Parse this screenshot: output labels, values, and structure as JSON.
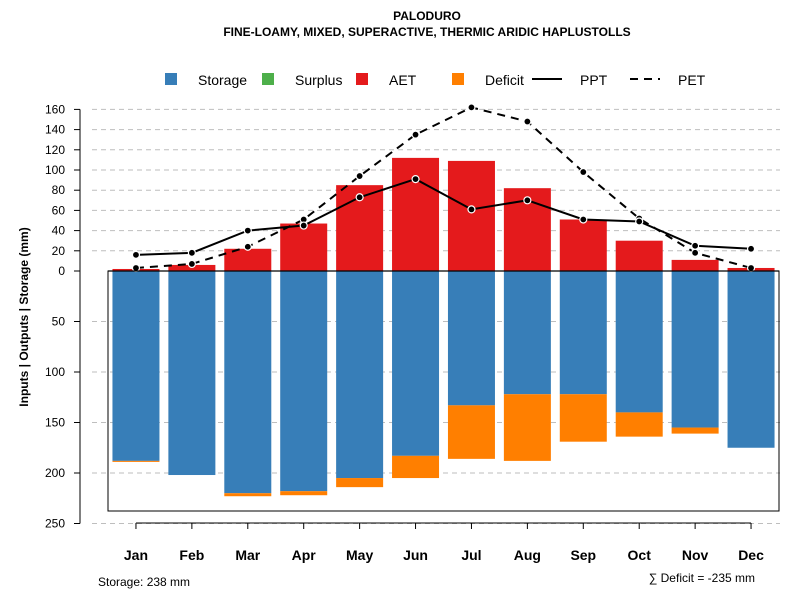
{
  "chart_data": {
    "type": "bar",
    "title": "PALODURO",
    "subtitle": "FINE-LOAMY, MIXED, SUPERACTIVE, THERMIC ARIDIC HAPLUSTOLLS",
    "ylabel": "Inputs | Outputs | Storage    (mm)",
    "categories": [
      "Jan",
      "Feb",
      "Mar",
      "Apr",
      "May",
      "Jun",
      "Jul",
      "Aug",
      "Sep",
      "Oct",
      "Nov",
      "Dec"
    ],
    "upper_axis": {
      "range": [
        0,
        160
      ],
      "ticks": [
        "0",
        "20",
        "40",
        "60",
        "80",
        "100",
        "120",
        "140",
        "160"
      ]
    },
    "lower_axis": {
      "range": [
        0,
        250
      ],
      "ticks": [
        "50",
        "100",
        "150",
        "200",
        "250"
      ]
    },
    "legend": [
      {
        "name": "Storage",
        "kind": "box",
        "color": "#377eb8"
      },
      {
        "name": "Surplus",
        "kind": "box",
        "color": "#4daf4a"
      },
      {
        "name": "AET",
        "kind": "box",
        "color": "#e41a1c"
      },
      {
        "name": "Deficit",
        "kind": "box",
        "color": "#ff7f00"
      },
      {
        "name": "PPT",
        "kind": "line",
        "color": "#000000"
      },
      {
        "name": "PET",
        "kind": "dashed",
        "color": "#000000"
      }
    ],
    "series": [
      {
        "name": "AET",
        "values": [
          2,
          6,
          22,
          47,
          85,
          112,
          109,
          82,
          51,
          30,
          11,
          3
        ]
      },
      {
        "name": "Storage",
        "values": [
          188,
          202,
          220,
          218,
          205,
          183,
          133,
          122,
          122,
          140,
          155,
          175
        ]
      },
      {
        "name": "Deficit",
        "values": [
          1,
          0,
          3,
          4,
          9,
          22,
          53,
          66,
          47,
          24,
          6,
          0
        ]
      },
      {
        "name": "PPT",
        "values": [
          16,
          18,
          40,
          45,
          73,
          91,
          61,
          70,
          51,
          49,
          25,
          22
        ]
      },
      {
        "name": "PET",
        "values": [
          3,
          7,
          24,
          51,
          94,
          135,
          162,
          148,
          98,
          52,
          18,
          3
        ]
      }
    ],
    "storage_label": "Storage: 238 mm",
    "deficit_label": "∑ Deficit = -235 mm",
    "colors": {
      "storage": "#377eb8",
      "surplus": "#4daf4a",
      "aet": "#e41a1c",
      "deficit": "#ff7f00",
      "grid": "#bebebe"
    }
  }
}
